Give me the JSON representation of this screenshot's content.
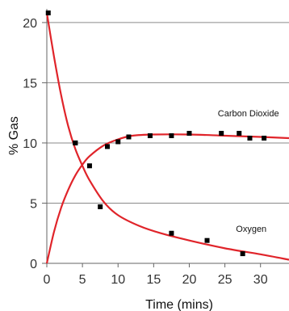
{
  "chart_data": {
    "type": "scatter",
    "title": "",
    "xlabel": "Time (mins)",
    "ylabel": "% Gas",
    "xlim": [
      0,
      34
    ],
    "ylim": [
      0,
      21
    ],
    "x_ticks": [
      0,
      5,
      10,
      15,
      20,
      25,
      30
    ],
    "y_ticks": [
      0,
      5,
      10,
      15,
      20
    ],
    "grid": "horizontal",
    "annotations": [
      {
        "text": "Carbon Dioxide",
        "series": "Carbon Dioxide",
        "x": 28.3,
        "y": 12.2
      },
      {
        "text": "Oxygen",
        "series": "Oxygen",
        "x": 28.7,
        "y": 2.6
      }
    ],
    "series": [
      {
        "name": "Oxygen",
        "color": "#e0242a",
        "points": [
          {
            "x": 0.2,
            "y": 20.8
          },
          {
            "x": 4.0,
            "y": 10.0
          },
          {
            "x": 7.5,
            "y": 4.7
          },
          {
            "x": 17.5,
            "y": 2.5
          },
          {
            "x": 22.5,
            "y": 1.9
          },
          {
            "x": 27.5,
            "y": 0.8
          }
        ],
        "fit_curve": [
          {
            "x": 0,
            "y": 20.8
          },
          {
            "x": 1,
            "y": 17.2
          },
          {
            "x": 2,
            "y": 14.0
          },
          {
            "x": 3,
            "y": 11.4
          },
          {
            "x": 4,
            "y": 9.5
          },
          {
            "x": 5,
            "y": 8.1
          },
          {
            "x": 6,
            "y": 6.9
          },
          {
            "x": 8,
            "y": 5.1
          },
          {
            "x": 10,
            "y": 4.0
          },
          {
            "x": 13,
            "y": 3.1
          },
          {
            "x": 16,
            "y": 2.5
          },
          {
            "x": 20,
            "y": 1.9
          },
          {
            "x": 25,
            "y": 1.25
          },
          {
            "x": 30,
            "y": 0.75
          },
          {
            "x": 34,
            "y": 0.3
          }
        ]
      },
      {
        "name": "Carbon Dioxide",
        "color": "#e0242a",
        "points": [
          {
            "x": 4.0,
            "y": 10.0
          },
          {
            "x": 6.0,
            "y": 8.1
          },
          {
            "x": 8.5,
            "y": 9.7
          },
          {
            "x": 10.0,
            "y": 10.1
          },
          {
            "x": 11.5,
            "y": 10.5
          },
          {
            "x": 14.5,
            "y": 10.6
          },
          {
            "x": 17.5,
            "y": 10.6
          },
          {
            "x": 20.0,
            "y": 10.8
          },
          {
            "x": 24.5,
            "y": 10.8
          },
          {
            "x": 27.0,
            "y": 10.8
          },
          {
            "x": 28.5,
            "y": 10.4
          },
          {
            "x": 30.5,
            "y": 10.4
          }
        ],
        "fit_curve": [
          {
            "x": 0,
            "y": 0.0
          },
          {
            "x": 1,
            "y": 2.6
          },
          {
            "x": 2,
            "y": 4.6
          },
          {
            "x": 3,
            "y": 6.1
          },
          {
            "x": 4,
            "y": 7.3
          },
          {
            "x": 5,
            "y": 8.2
          },
          {
            "x": 6,
            "y": 8.9
          },
          {
            "x": 8,
            "y": 9.8
          },
          {
            "x": 10,
            "y": 10.3
          },
          {
            "x": 12,
            "y": 10.6
          },
          {
            "x": 15,
            "y": 10.7
          },
          {
            "x": 20,
            "y": 10.7
          },
          {
            "x": 25,
            "y": 10.6
          },
          {
            "x": 30,
            "y": 10.5
          },
          {
            "x": 34,
            "y": 10.4
          }
        ]
      }
    ]
  }
}
